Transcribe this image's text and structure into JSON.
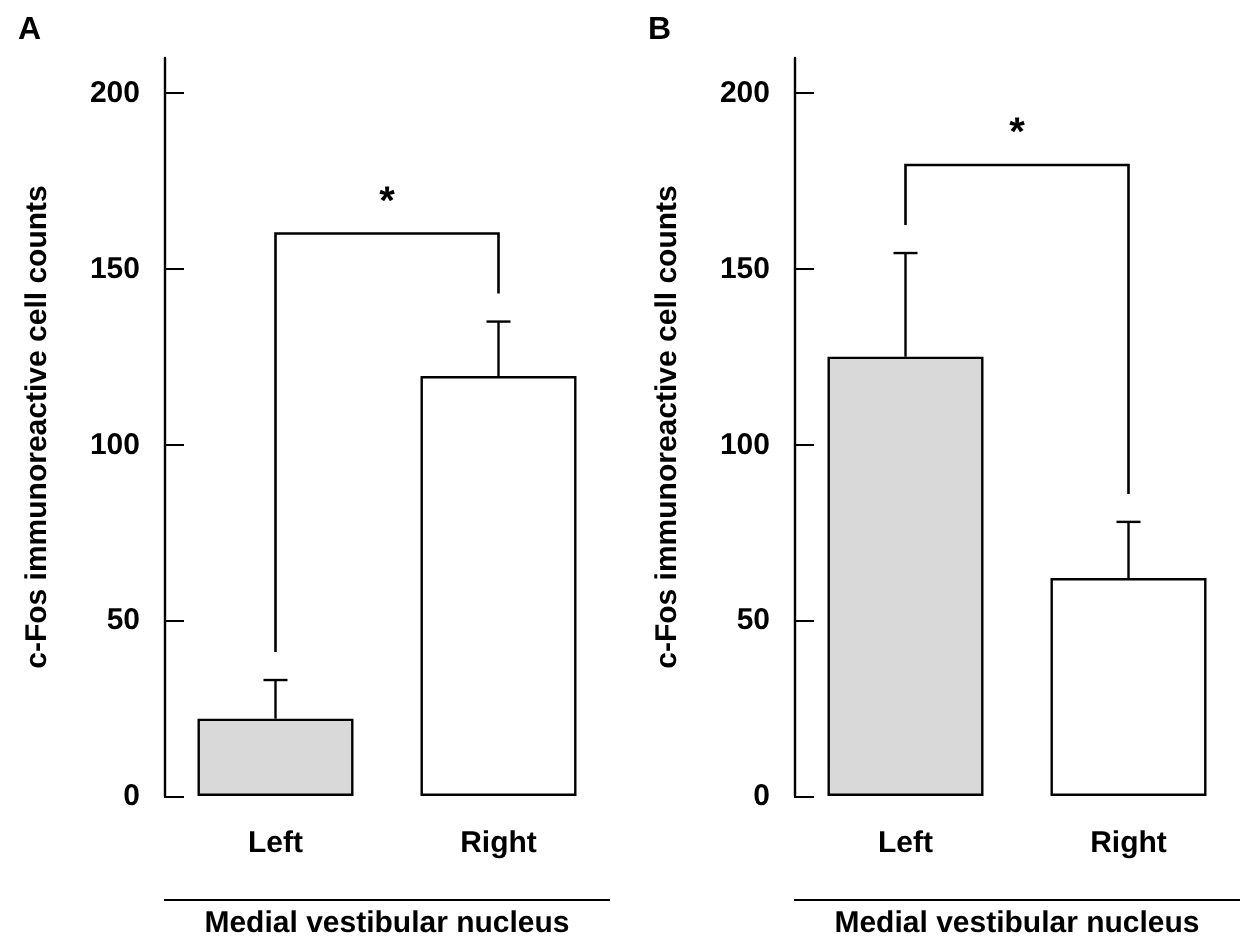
{
  "chart_data": [
    {
      "type": "bar",
      "title": "A",
      "ylabel": "c-Fos immunoreactive cell counts",
      "xlabel": "Medial vestibular nucleus",
      "categories": [
        "Left",
        "Right"
      ],
      "values": [
        22,
        119.5
      ],
      "colors": [
        "#d9d9d9",
        "#ffffff"
      ],
      "errors": [
        [
          22,
          33
        ],
        [
          119.5,
          135
        ]
      ],
      "ylim": [
        0,
        210
      ],
      "yticks": [
        0,
        50,
        100,
        150,
        200
      ],
      "grid": false,
      "annotations": [
        "*"
      ]
    },
    {
      "type": "bar",
      "title": "B",
      "ylabel": "c-Fos immunoreactive cell counts",
      "xlabel": "Medial vestibular nucleus",
      "categories": [
        "Left",
        "Right"
      ],
      "values": [
        125,
        62
      ],
      "colors": [
        "#d9d9d9",
        "#ffffff"
      ],
      "errors": [
        [
          125,
          154.5
        ],
        [
          62,
          78
        ]
      ],
      "ylim": [
        0,
        210
      ],
      "yticks": [
        0,
        50,
        100,
        150,
        200
      ],
      "grid": false,
      "annotations": [
        "*"
      ]
    }
  ]
}
